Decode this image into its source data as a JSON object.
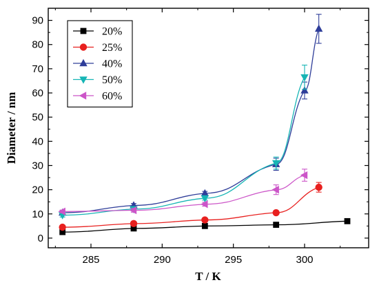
{
  "chart_data": {
    "type": "line",
    "xlabel": "T / K",
    "ylabel": "Diameter / nm",
    "xlim": [
      282,
      304.5
    ],
    "ylim": [
      -4,
      95
    ],
    "xticks": [
      285,
      290,
      295,
      300
    ],
    "yticks": [
      0,
      10,
      20,
      30,
      40,
      50,
      60,
      70,
      80,
      90
    ],
    "grid": false,
    "legend_position": "top-left",
    "series": [
      {
        "name": "20%",
        "color": "#000000",
        "marker": "square",
        "x": [
          283,
          288,
          293,
          298,
          303
        ],
        "y": [
          2.5,
          4.0,
          5.0,
          5.5,
          7.0
        ],
        "err": [
          0.3,
          0.3,
          0.3,
          0.3,
          0.3
        ]
      },
      {
        "name": "25%",
        "color": "#e8201f",
        "marker": "circle",
        "x": [
          283,
          288,
          293,
          298,
          301
        ],
        "y": [
          4.5,
          6.0,
          7.5,
          10.5,
          21.0
        ],
        "err": [
          0.3,
          0.3,
          0.4,
          0.6,
          2.0
        ]
      },
      {
        "name": "40%",
        "color": "#2e3d99",
        "marker": "triangle-up",
        "x": [
          283,
          288,
          293,
          298,
          300,
          301
        ],
        "y": [
          10.5,
          13.5,
          18.5,
          30.5,
          61.0,
          86.5
        ],
        "err": [
          0.8,
          0.8,
          0.8,
          2.5,
          3.5,
          6.0
        ]
      },
      {
        "name": "50%",
        "color": "#16b5b5",
        "marker": "triangle-down",
        "x": [
          283,
          288,
          293,
          298,
          300
        ],
        "y": [
          9.5,
          12.0,
          16.5,
          31.0,
          66.5
        ],
        "err": [
          0.8,
          0.8,
          0.8,
          2.5,
          5.0
        ]
      },
      {
        "name": "60%",
        "color": "#cc55c8",
        "marker": "triangle-left",
        "x": [
          283,
          288,
          293,
          298,
          300
        ],
        "y": [
          11.0,
          11.5,
          14.0,
          20.0,
          26.0
        ],
        "err": [
          0.6,
          0.8,
          0.8,
          2.0,
          2.5
        ]
      }
    ]
  }
}
